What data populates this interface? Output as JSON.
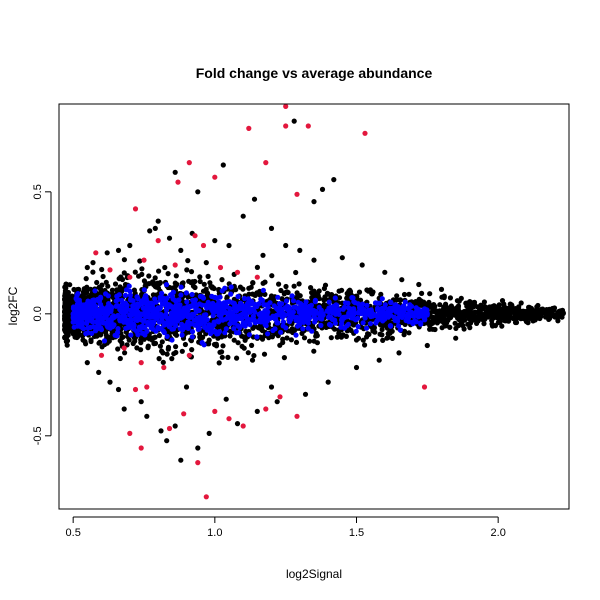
{
  "chart_data": {
    "type": "scatter",
    "title": "Fold change vs average abundance",
    "xlabel": "log2Signal",
    "ylabel": "log2FC",
    "xlim": [
      0.45,
      2.25
    ],
    "ylim": [
      -0.8,
      0.86
    ],
    "xticks": [
      0.5,
      1.0,
      1.5,
      2.0
    ],
    "xtick_labels": [
      "0.5",
      "1.0",
      "1.5",
      "2.0"
    ],
    "yticks": [
      -0.5,
      0.0,
      0.5
    ],
    "ytick_labels": [
      "-0.5",
      "0.0",
      "0.5"
    ],
    "grid": false,
    "legend": "none",
    "series": [
      {
        "color": "#000000",
        "points": [
          [
            1.28,
            0.79
          ],
          [
            1.14,
            0.47
          ],
          [
            1.42,
            0.55
          ],
          [
            1.38,
            0.51
          ],
          [
            1.35,
            0.46
          ],
          [
            1.03,
            0.61
          ],
          [
            0.86,
            0.58
          ],
          [
            0.94,
            0.5
          ],
          [
            1.1,
            0.4
          ],
          [
            1.2,
            0.35
          ],
          [
            1.25,
            0.28
          ],
          [
            0.8,
            0.38
          ],
          [
            0.79,
            0.35
          ],
          [
            0.77,
            0.34
          ],
          [
            0.84,
            0.31
          ],
          [
            0.92,
            0.33
          ],
          [
            1.0,
            0.3
          ],
          [
            1.05,
            0.28
          ],
          [
            0.7,
            0.28
          ],
          [
            0.66,
            0.26
          ],
          [
            0.62,
            0.25
          ],
          [
            0.57,
            0.21
          ],
          [
            0.55,
            0.19
          ],
          [
            1.45,
            0.23
          ],
          [
            1.52,
            0.2
          ],
          [
            1.6,
            0.17
          ],
          [
            1.66,
            0.14
          ],
          [
            1.72,
            0.12
          ],
          [
            1.8,
            0.1
          ],
          [
            1.3,
            0.26
          ],
          [
            1.35,
            0.22
          ],
          [
            0.88,
            0.26
          ],
          [
            1.17,
            0.24
          ],
          [
            0.97,
            0.21
          ],
          [
            0.74,
            -0.36
          ],
          [
            0.76,
            -0.42
          ],
          [
            0.81,
            -0.48
          ],
          [
            0.83,
            -0.52
          ],
          [
            0.88,
            -0.6
          ],
          [
            0.98,
            -0.49
          ],
          [
            0.94,
            -0.55
          ],
          [
            1.08,
            -0.45
          ],
          [
            1.15,
            -0.4
          ],
          [
            1.22,
            -0.36
          ],
          [
            1.32,
            -0.33
          ],
          [
            1.4,
            -0.28
          ],
          [
            0.68,
            -0.39
          ],
          [
            0.66,
            -0.31
          ],
          [
            0.63,
            -0.28
          ],
          [
            0.59,
            -0.24
          ],
          [
            0.55,
            -0.2
          ],
          [
            1.5,
            -0.22
          ],
          [
            1.58,
            -0.19
          ],
          [
            1.65,
            -0.16
          ],
          [
            1.75,
            -0.13
          ],
          [
            1.85,
            -0.1
          ],
          [
            1.04,
            -0.35
          ],
          [
            0.9,
            -0.3
          ],
          [
            1.2,
            -0.3
          ],
          [
            0.86,
            -0.46
          ],
          [
            2.0,
            0.03
          ],
          [
            2.05,
            0.02
          ],
          [
            2.1,
            0.01
          ],
          [
            2.15,
            0.0
          ],
          [
            2.22,
            0.0
          ],
          [
            2.18,
            -0.01
          ],
          [
            2.08,
            -0.02
          ],
          [
            1.95,
            -0.04
          ],
          [
            1.9,
            0.05
          ],
          [
            1.98,
            -0.05
          ],
          [
            2.02,
            0.04
          ]
        ]
      },
      {
        "color": "#e3173d",
        "points": [
          [
            1.25,
            0.85
          ],
          [
            1.33,
            0.77
          ],
          [
            1.25,
            0.77
          ],
          [
            1.12,
            0.76
          ],
          [
            1.53,
            0.74
          ],
          [
            0.91,
            0.62
          ],
          [
            1.18,
            0.62
          ],
          [
            0.87,
            0.54
          ],
          [
            1.0,
            0.56
          ],
          [
            1.29,
            0.49
          ],
          [
            0.72,
            0.43
          ],
          [
            0.8,
            0.3
          ],
          [
            0.93,
            0.32
          ],
          [
            0.96,
            0.28
          ],
          [
            0.58,
            0.25
          ],
          [
            0.63,
            0.18
          ],
          [
            0.86,
            0.2
          ],
          [
            1.02,
            0.19
          ],
          [
            1.08,
            0.17
          ],
          [
            0.75,
            0.22
          ],
          [
            0.7,
            0.15
          ],
          [
            1.15,
            0.15
          ],
          [
            0.74,
            -0.2
          ],
          [
            0.72,
            -0.31
          ],
          [
            0.76,
            -0.3
          ],
          [
            0.7,
            -0.49
          ],
          [
            0.74,
            -0.55
          ],
          [
            0.84,
            -0.47
          ],
          [
            0.89,
            -0.41
          ],
          [
            0.94,
            -0.61
          ],
          [
            1.0,
            -0.4
          ],
          [
            1.05,
            -0.43
          ],
          [
            1.1,
            -0.46
          ],
          [
            1.18,
            -0.39
          ],
          [
            1.23,
            -0.34
          ],
          [
            1.29,
            -0.42
          ],
          [
            1.74,
            -0.3
          ],
          [
            0.97,
            -0.75
          ],
          [
            0.6,
            -0.17
          ],
          [
            0.68,
            -0.14
          ],
          [
            0.82,
            -0.22
          ],
          [
            0.91,
            -0.17
          ]
        ]
      }
    ],
    "cloud": {
      "black_color": "#000000",
      "blue_color": "#0000ff",
      "center_y": 0.0,
      "spread": [
        [
          0.45,
          0.07
        ],
        [
          0.6,
          0.11
        ],
        [
          0.9,
          0.13
        ],
        [
          1.2,
          0.11
        ],
        [
          1.5,
          0.08
        ],
        [
          1.8,
          0.05
        ],
        [
          2.25,
          0.015
        ]
      ],
      "start_x": 0.45,
      "end_x": 2.25
    }
  }
}
